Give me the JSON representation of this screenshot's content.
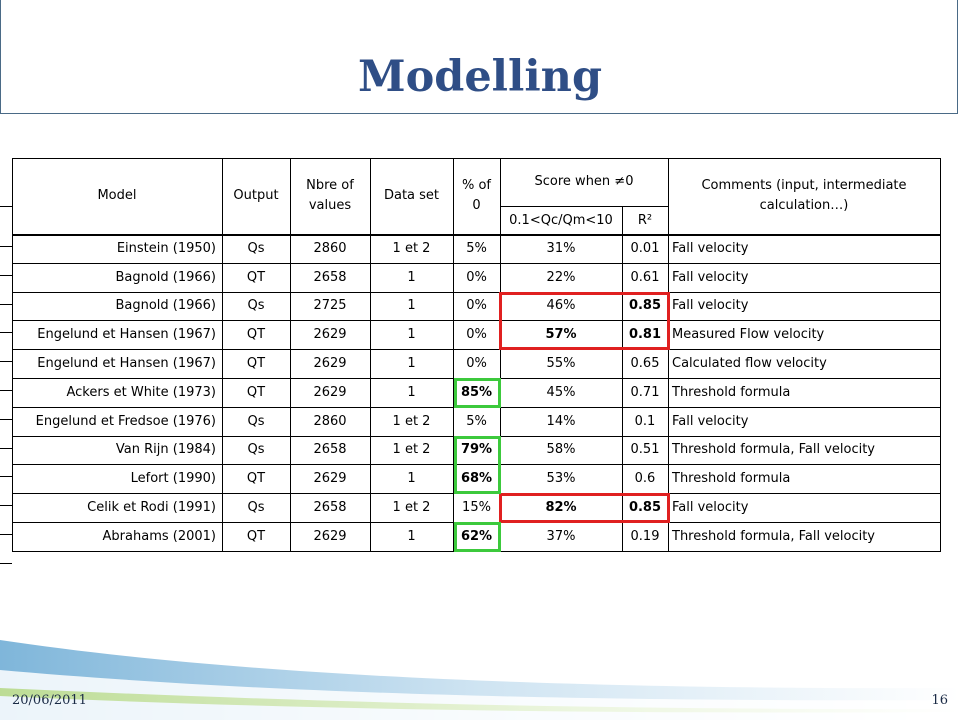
{
  "title": "Modelling",
  "footer": {
    "date": "20/06/2011",
    "page": "16"
  },
  "table": {
    "headers": {
      "model": "Model",
      "output": "Output",
      "nbre": "Nbre of values",
      "dataset": "Data set",
      "pct0": "% of 0",
      "score": "Score when ≠0",
      "score_range": "0.1<Qc/Qm<10",
      "r2": "R²",
      "comments": "Comments (input, intermediate calculation…)"
    },
    "rows": [
      {
        "model": "Einstein (1950)",
        "output": "Qs",
        "nbre": "2860",
        "dataset": "1 et 2",
        "pct0": "5%",
        "score": "31%",
        "r2": "0.01",
        "comments": "Fall velocity"
      },
      {
        "model": "Bagnold (1966)",
        "output": "QT",
        "nbre": "2658",
        "dataset": "1",
        "pct0": "0%",
        "score": "22%",
        "r2": "0.61",
        "comments": "Fall velocity"
      },
      {
        "model": "Bagnold (1966)",
        "output": "Qs",
        "nbre": "2725",
        "dataset": "1",
        "pct0": "0%",
        "score": "46%",
        "r2": "0.85",
        "comments": "Fall velocity"
      },
      {
        "model": "Engelund et Hansen (1967)",
        "output": "QT",
        "nbre": "2629",
        "dataset": "1",
        "pct0": "0%",
        "score": "57%",
        "r2": "0.81",
        "comments": "Measured Flow velocity"
      },
      {
        "model": "Engelund et Hansen (1967)",
        "output": "QT",
        "nbre": "2629",
        "dataset": "1",
        "pct0": "0%",
        "score": "55%",
        "r2": "0.65",
        "comments": "Calculated flow velocity"
      },
      {
        "model": "Ackers et White (1973)",
        "output": "QT",
        "nbre": "2629",
        "dataset": "1",
        "pct0": "85%",
        "score": "45%",
        "r2": "0.71",
        "comments": "Threshold formula"
      },
      {
        "model": "Engelund et Fredsoe (1976)",
        "output": "Qs",
        "nbre": "2860",
        "dataset": "1 et 2",
        "pct0": "5%",
        "score": "14%",
        "r2": "0.1",
        "comments": "Fall velocity"
      },
      {
        "model": "Van Rijn (1984)",
        "output": "Qs",
        "nbre": "2658",
        "dataset": "1 et 2",
        "pct0": "79%",
        "score": "58%",
        "r2": "0.51",
        "comments": "Threshold formula, Fall velocity"
      },
      {
        "model": "Lefort (1990)",
        "output": "QT",
        "nbre": "2629",
        "dataset": "1",
        "pct0": "68%",
        "score": "53%",
        "r2": "0.6",
        "comments": "Threshold formula"
      },
      {
        "model": "Celik et Rodi (1991)",
        "output": "Qs",
        "nbre": "2658",
        "dataset": "1 et 2",
        "pct0": "15%",
        "score": "82%",
        "r2": "0.85",
        "comments": "Fall velocity"
      },
      {
        "model": "Abrahams (2001)",
        "output": "QT",
        "nbre": "2629",
        "dataset": "1",
        "pct0": "62%",
        "score": "37%",
        "r2": "0.19",
        "comments": "Threshold formula, Fall velocity"
      }
    ],
    "bold_cells": {
      "pct0": [
        5,
        7,
        8,
        10
      ],
      "score": [
        3,
        9
      ],
      "r2": [
        2,
        3,
        9
      ]
    }
  }
}
